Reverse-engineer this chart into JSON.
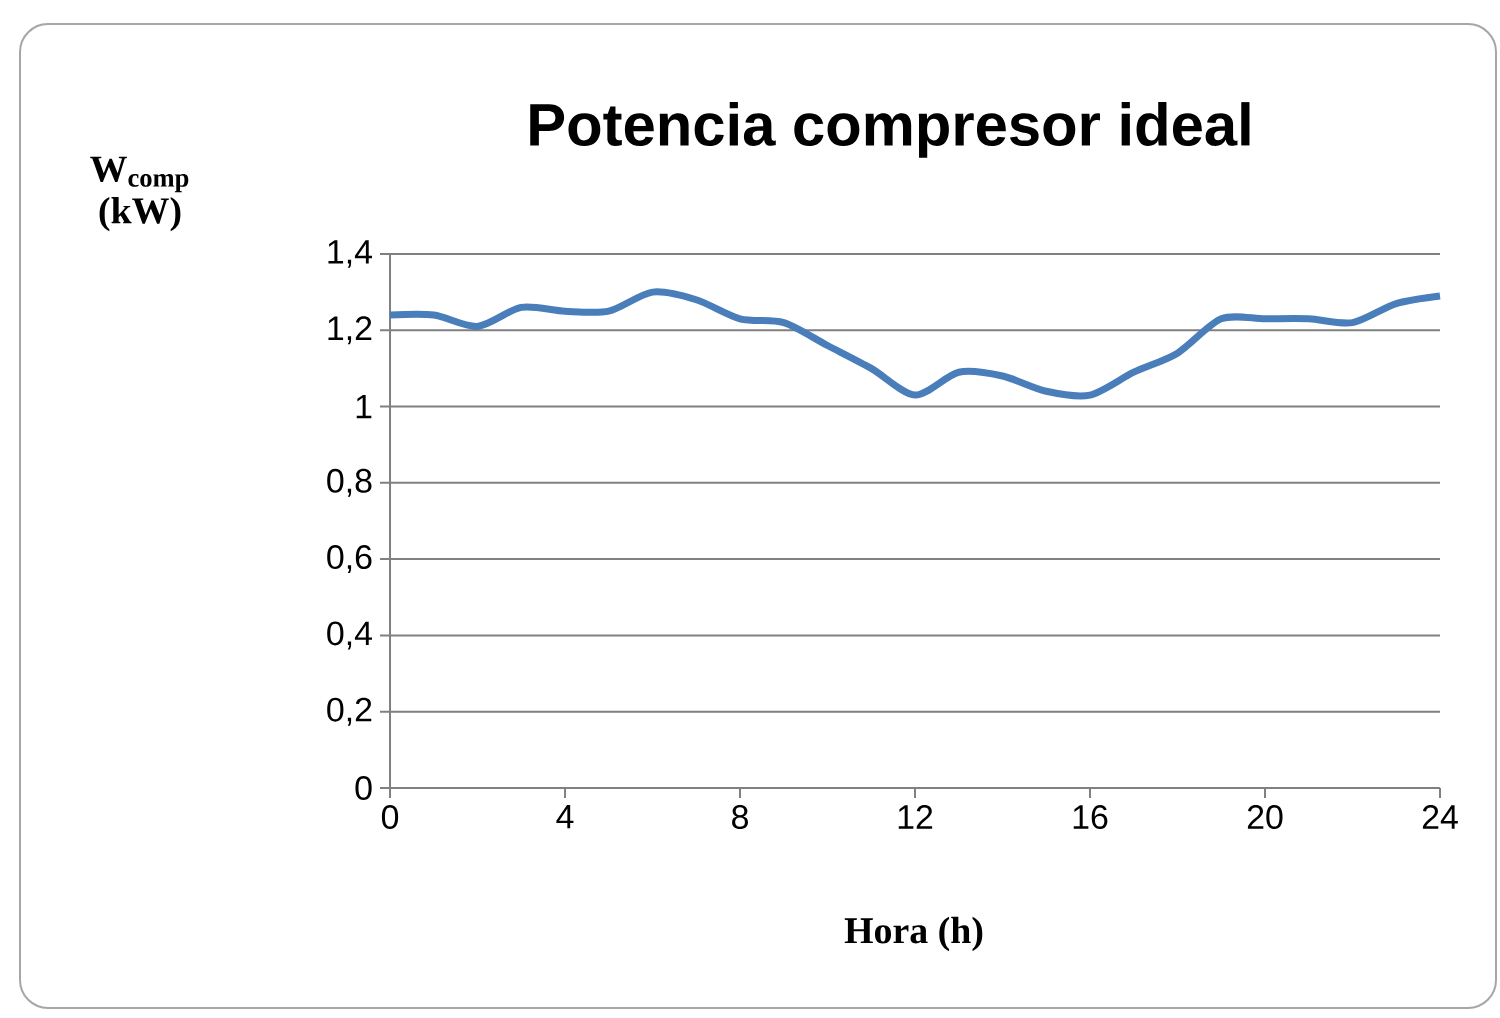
{
  "chart_data": {
    "type": "line",
    "title": "Potencia compresor ideal",
    "xlabel": "Hora (h)",
    "ylabel": "W$_{comp}$ (kW)",
    "x": [
      0,
      1,
      2,
      3,
      4,
      5,
      6,
      7,
      8,
      9,
      10,
      11,
      12,
      13,
      14,
      15,
      16,
      17,
      18,
      19,
      20,
      21,
      22,
      23,
      24
    ],
    "series": [
      {
        "color": "#4a7ebb",
        "values": [
          1.24,
          1.24,
          1.21,
          1.26,
          1.25,
          1.25,
          1.3,
          1.28,
          1.23,
          1.22,
          1.16,
          1.1,
          1.03,
          1.09,
          1.08,
          1.04,
          1.03,
          1.09,
          1.14,
          1.23,
          1.23,
          1.23,
          1.22,
          1.27,
          1.29
        ]
      }
    ],
    "xlim": [
      0,
      24
    ],
    "xticks": [
      0,
      4,
      8,
      12,
      16,
      20,
      24
    ],
    "ylim": [
      0,
      1.4
    ],
    "yticks": [
      0,
      {
        "value": 0.2,
        "label": "0,2"
      },
      {
        "value": 0.4,
        "label": "0,4"
      },
      {
        "value": 0.6,
        "label": "0,6"
      },
      {
        "value": 0.8,
        "label": "0,8"
      },
      1,
      {
        "value": 1.2,
        "label": "1,2"
      },
      {
        "value": 1.4,
        "label": "1,4"
      }
    ],
    "grid": "y"
  }
}
